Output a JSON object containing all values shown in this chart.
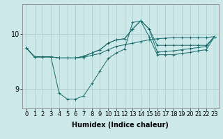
{
  "background_color": "#cce8e8",
  "grid_color": "#aacccc",
  "line_color": "#1a6b6b",
  "marker": "+",
  "xlabel": "Humidex (Indice chaleur)",
  "x_ticks": [
    0,
    1,
    2,
    3,
    4,
    5,
    6,
    7,
    8,
    9,
    10,
    11,
    12,
    13,
    14,
    15,
    16,
    17,
    18,
    19,
    20,
    21,
    22,
    23
  ],
  "y_ticks": [
    9,
    10
  ],
  "ylim": [
    8.65,
    10.55
  ],
  "xlim": [
    -0.5,
    23.5
  ],
  "lines": [
    [
      9.75,
      9.59,
      9.59,
      9.59,
      9.57,
      9.57,
      9.57,
      9.58,
      9.62,
      9.65,
      9.72,
      9.78,
      9.81,
      9.84,
      9.87,
      9.9,
      9.92,
      9.93,
      9.94,
      9.94,
      9.94,
      9.94,
      9.94,
      9.96
    ],
    [
      9.75,
      9.59,
      9.59,
      9.59,
      8.93,
      8.82,
      8.82,
      8.88,
      9.1,
      9.33,
      9.56,
      9.66,
      9.73,
      10.22,
      10.24,
      9.96,
      9.63,
      9.63,
      9.63,
      9.65,
      9.67,
      9.7,
      9.72,
      9.96
    ],
    [
      9.75,
      9.59,
      9.59,
      9.59,
      9.57,
      9.57,
      9.57,
      9.6,
      9.66,
      9.72,
      9.84,
      9.9,
      9.92,
      10.1,
      10.25,
      10.1,
      9.68,
      9.69,
      9.7,
      9.72,
      9.74,
      9.76,
      9.78,
      9.96
    ],
    [
      9.75,
      9.59,
      9.59,
      9.59,
      9.57,
      9.57,
      9.57,
      9.6,
      9.66,
      9.72,
      9.84,
      9.9,
      9.92,
      10.1,
      10.25,
      10.1,
      9.8,
      9.8,
      9.8,
      9.8,
      9.8,
      9.8,
      9.8,
      9.96
    ]
  ],
  "xlabel_fontsize": 7,
  "xlabel_fontweight": "bold",
  "tick_fontsize": 6,
  "linewidth": 0.7,
  "markersize": 3,
  "markeredgewidth": 0.7
}
